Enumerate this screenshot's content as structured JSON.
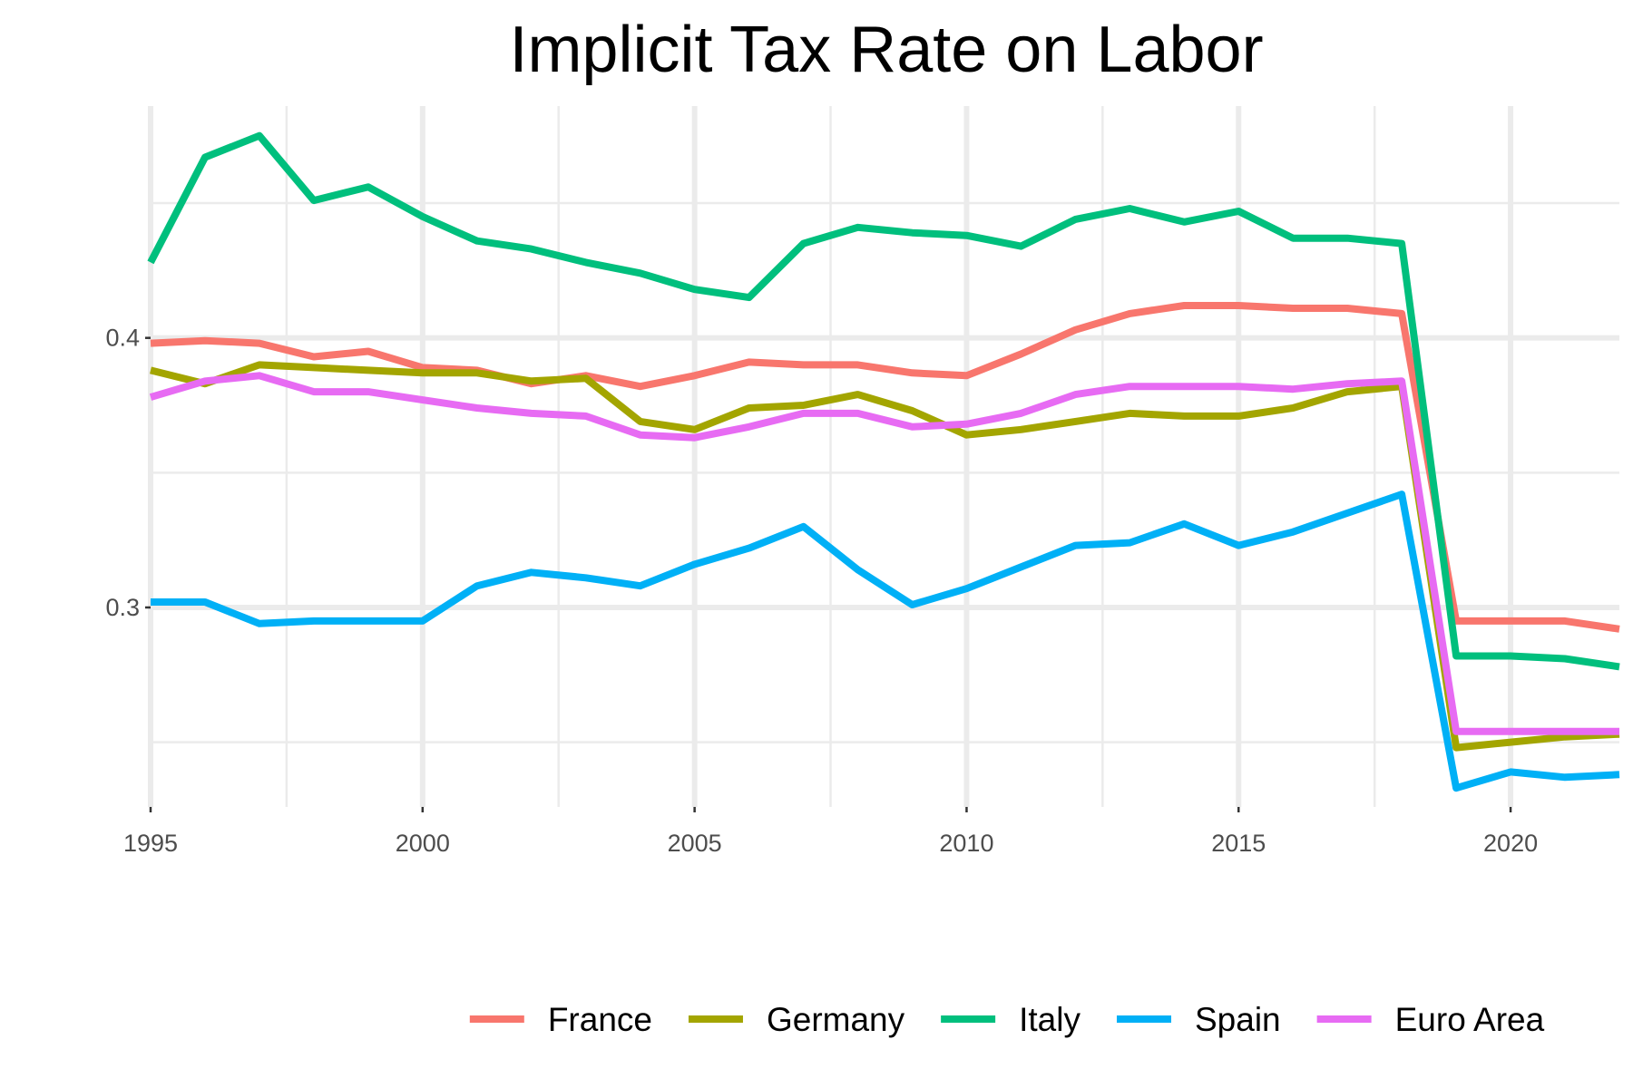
{
  "chart_data": {
    "type": "line",
    "title": "Implicit Tax Rate on Labor",
    "xlabel": "",
    "ylabel": "",
    "xlim": [
      1995,
      2022
    ],
    "ylim": [
      0.226,
      0.486
    ],
    "x_ticks": [
      1995,
      2000,
      2005,
      2010,
      2015,
      2020
    ],
    "x_tick_labels": [
      "1995",
      "2000",
      "2005",
      "2010",
      "2015",
      "2020"
    ],
    "y_ticks": [
      0.3,
      0.4
    ],
    "y_tick_labels": [
      "0.3",
      "0.4"
    ],
    "grid": true,
    "legend_position": "bottom",
    "x": [
      1995,
      1996,
      1997,
      1998,
      1999,
      2000,
      2001,
      2002,
      2003,
      2004,
      2005,
      2006,
      2007,
      2008,
      2009,
      2010,
      2011,
      2012,
      2013,
      2014,
      2015,
      2016,
      2017,
      2018,
      2019,
      2020,
      2021,
      2022
    ],
    "series": [
      {
        "name": "France",
        "color": "#F8766D",
        "values": [
          0.398,
          0.399,
          0.398,
          0.393,
          0.395,
          0.389,
          0.388,
          0.383,
          0.386,
          0.382,
          0.386,
          0.391,
          0.39,
          0.39,
          0.387,
          0.386,
          0.394,
          0.403,
          0.409,
          0.412,
          0.412,
          0.411,
          0.411,
          0.409,
          0.295,
          0.295,
          0.295,
          0.292
        ]
      },
      {
        "name": "Germany",
        "color": "#A3A500",
        "values": [
          0.388,
          0.383,
          0.39,
          0.389,
          0.388,
          0.387,
          0.387,
          0.384,
          0.385,
          0.369,
          0.366,
          0.374,
          0.375,
          0.379,
          0.373,
          0.364,
          0.366,
          0.369,
          0.372,
          0.371,
          0.371,
          0.374,
          0.38,
          0.382,
          0.248,
          0.25,
          0.252,
          0.253
        ]
      },
      {
        "name": "Italy",
        "color": "#00BF7D",
        "values": [
          0.428,
          0.467,
          0.475,
          0.451,
          0.456,
          0.445,
          0.436,
          0.433,
          0.428,
          0.424,
          0.418,
          0.415,
          0.435,
          0.441,
          0.439,
          0.438,
          0.434,
          0.444,
          0.448,
          0.443,
          0.447,
          0.437,
          0.437,
          0.435,
          0.282,
          0.282,
          0.281,
          0.278
        ]
      },
      {
        "name": "Spain",
        "color": "#00B0F6",
        "values": [
          0.302,
          0.302,
          0.294,
          0.295,
          0.295,
          0.295,
          0.308,
          0.313,
          0.311,
          0.308,
          0.316,
          0.322,
          0.33,
          0.314,
          0.301,
          0.307,
          0.315,
          0.323,
          0.324,
          0.331,
          0.323,
          0.328,
          0.335,
          0.342,
          0.233,
          0.239,
          0.237,
          0.238
        ]
      },
      {
        "name": "Euro Area",
        "color": "#E76BF3",
        "values": [
          0.378,
          0.384,
          0.386,
          0.38,
          0.38,
          0.377,
          0.374,
          0.372,
          0.371,
          0.364,
          0.363,
          0.367,
          0.372,
          0.372,
          0.367,
          0.368,
          0.372,
          0.379,
          0.382,
          0.382,
          0.382,
          0.381,
          0.383,
          0.384,
          0.254,
          0.254,
          0.254,
          0.254
        ]
      }
    ]
  }
}
